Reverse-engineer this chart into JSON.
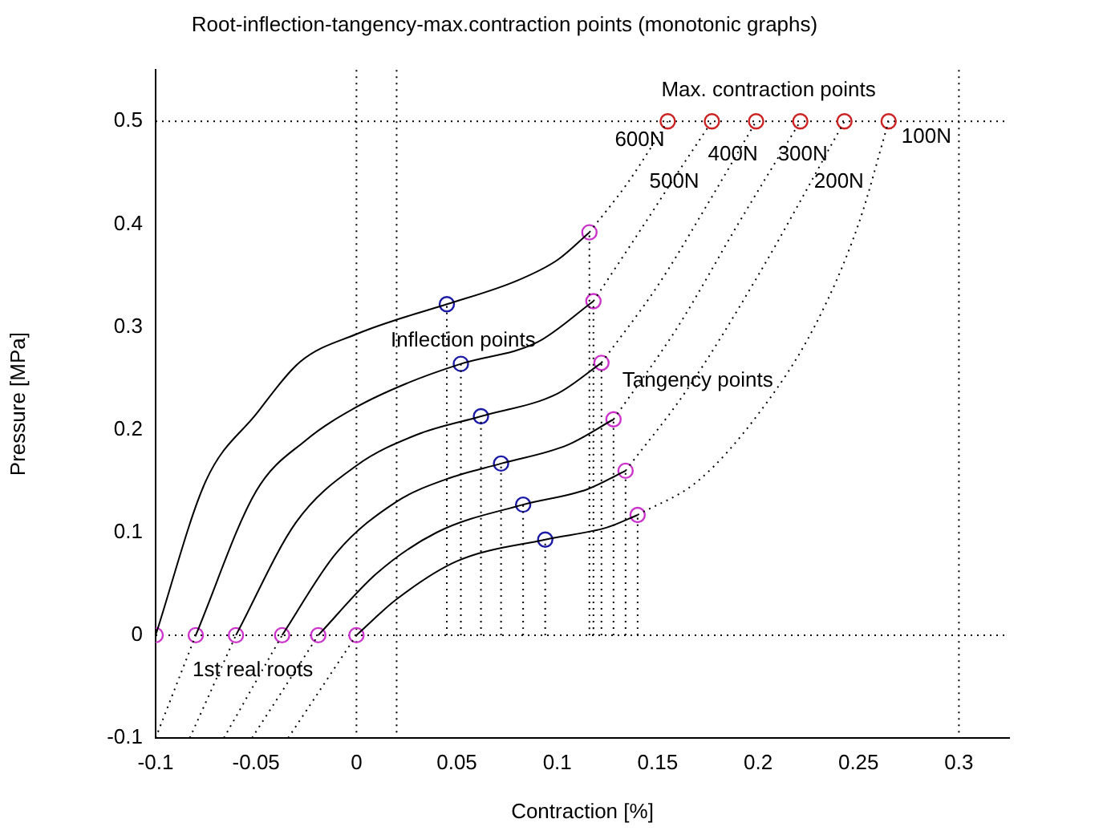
{
  "chart_data": {
    "type": "line",
    "title": "Root-inflection-tangency-max.contraction points (monotonic graphs)",
    "xlabel": "Contraction [%]",
    "ylabel": "Pressure [MPa]",
    "xlim": [
      -0.1,
      0.325
    ],
    "xticks": [
      -0.1,
      -0.05,
      0,
      0.05,
      0.1,
      0.15,
      0.2,
      0.25,
      0.3
    ],
    "ylim": [
      -0.1,
      0.55
    ],
    "yticks": [
      -0.1,
      0,
      0.1,
      0.2,
      0.3,
      0.4,
      0.5
    ],
    "grid": false,
    "legend": false,
    "ref_lines": [
      {
        "axis": "y",
        "value": 0,
        "line_style": "dotted"
      },
      {
        "axis": "y",
        "value": 0.5,
        "line_style": "dotted"
      },
      {
        "axis": "x",
        "value": 0,
        "line_style": "dotted"
      },
      {
        "axis": "x",
        "value": 0.02,
        "line_style": "dotted"
      },
      {
        "axis": "x",
        "value": 0.3,
        "line_style": "dotted"
      }
    ],
    "annotations": [
      {
        "text": "Max. contraction points",
        "x": 0.155,
        "y": 0.5
      },
      {
        "text": "Inflection points",
        "x": 0.045,
        "y": 0.322
      },
      {
        "text": "Tangency points",
        "x": 0.122,
        "y": 0.265
      },
      {
        "text": "1st real roots",
        "x": -0.08,
        "y": 0
      }
    ],
    "series": [
      {
        "type": "line",
        "color": "#000000",
        "line_style": "solid",
        "marker": "none",
        "x": [
          -0.1,
          -0.075,
          -0.05,
          -0.028,
          0,
          0.02,
          0.045,
          0.08,
          0.1,
          0.116
        ],
        "values": [
          0,
          0.15,
          0.215,
          0.266,
          0.293,
          0.307,
          0.322,
          0.345,
          0.365,
          0.392
        ]
      },
      {
        "type": "line",
        "name": "600N",
        "color": "#000000",
        "line_style": "dotted",
        "marker": "none",
        "x": [
          0.116,
          0.135,
          0.155
        ],
        "values": [
          0.392,
          0.44,
          0.5
        ]
      },
      {
        "type": "line",
        "color": "#000000",
        "line_style": "dotted",
        "marker": "none",
        "x": [
          -0.1,
          -0.08
        ],
        "values": [
          -0.1,
          0
        ]
      },
      {
        "type": "line",
        "color": "#000000",
        "line_style": "solid",
        "marker": "none",
        "x": [
          -0.08,
          -0.05,
          -0.025,
          0,
          0.025,
          0.052,
          0.09,
          0.118
        ],
        "values": [
          0,
          0.14,
          0.19,
          0.222,
          0.245,
          0.264,
          0.285,
          0.325
        ]
      },
      {
        "type": "line",
        "name": "500N",
        "color": "#000000",
        "line_style": "dotted",
        "marker": "none",
        "x": [
          0.118,
          0.14,
          0.16,
          0.177
        ],
        "values": [
          0.325,
          0.39,
          0.45,
          0.5
        ]
      },
      {
        "type": "line",
        "color": "#000000",
        "line_style": "dotted",
        "marker": "none",
        "x": [
          -0.083,
          -0.06
        ],
        "values": [
          -0.1,
          0
        ]
      },
      {
        "type": "line",
        "color": "#000000",
        "line_style": "solid",
        "marker": "none",
        "x": [
          -0.06,
          -0.03,
          0,
          0.03,
          0.062,
          0.1,
          0.122
        ],
        "values": [
          0,
          0.11,
          0.165,
          0.195,
          0.213,
          0.235,
          0.265
        ]
      },
      {
        "type": "line",
        "name": "400N",
        "color": "#000000",
        "line_style": "dotted",
        "marker": "none",
        "x": [
          0.122,
          0.15,
          0.175,
          0.199
        ],
        "values": [
          0.265,
          0.34,
          0.42,
          0.5
        ]
      },
      {
        "type": "line",
        "color": "#000000",
        "line_style": "dotted",
        "marker": "none",
        "x": [
          -0.066,
          -0.037
        ],
        "values": [
          -0.1,
          0
        ]
      },
      {
        "type": "line",
        "color": "#000000",
        "line_style": "solid",
        "marker": "none",
        "x": [
          -0.037,
          -0.01,
          0.02,
          0.045,
          0.072,
          0.105,
          0.128
        ],
        "values": [
          0,
          0.08,
          0.13,
          0.152,
          0.167,
          0.185,
          0.21
        ]
      },
      {
        "type": "line",
        "name": "300N",
        "color": "#000000",
        "line_style": "dotted",
        "marker": "none",
        "x": [
          0.128,
          0.16,
          0.19,
          0.221
        ],
        "values": [
          0.21,
          0.3,
          0.4,
          0.5
        ]
      },
      {
        "type": "line",
        "color": "#000000",
        "line_style": "dotted",
        "marker": "none",
        "x": [
          -0.052,
          -0.019
        ],
        "values": [
          -0.1,
          0
        ]
      },
      {
        "type": "line",
        "color": "#000000",
        "line_style": "solid",
        "marker": "none",
        "x": [
          -0.019,
          0.01,
          0.04,
          0.083,
          0.115,
          0.134
        ],
        "values": [
          0,
          0.06,
          0.1,
          0.127,
          0.142,
          0.16
        ]
      },
      {
        "type": "line",
        "name": "200N",
        "color": "#000000",
        "line_style": "dotted",
        "marker": "none",
        "x": [
          0.134,
          0.165,
          0.2,
          0.243
        ],
        "values": [
          0.16,
          0.24,
          0.35,
          0.5
        ]
      },
      {
        "type": "line",
        "color": "#000000",
        "line_style": "dotted",
        "marker": "none",
        "x": [
          -0.034,
          0
        ],
        "values": [
          -0.1,
          0
        ]
      },
      {
        "type": "line",
        "color": "#000000",
        "line_style": "solid",
        "marker": "none",
        "x": [
          0,
          0.02,
          0.05,
          0.094,
          0.125,
          0.14
        ],
        "values": [
          0,
          0.035,
          0.072,
          0.093,
          0.105,
          0.117
        ]
      },
      {
        "type": "line",
        "name": "100N",
        "color": "#000000",
        "line_style": "dotted",
        "marker": "none",
        "x": [
          0.14,
          0.17,
          0.2,
          0.228,
          0.25,
          0.265
        ],
        "values": [
          0.117,
          0.15,
          0.215,
          0.3,
          0.4,
          0.5
        ]
      },
      {
        "type": "line",
        "color": "#000000",
        "line_style": "dotted",
        "marker": "none",
        "x": [
          0.045,
          0.045
        ],
        "values": [
          0,
          0.322
        ]
      },
      {
        "type": "line",
        "color": "#000000",
        "line_style": "dotted",
        "marker": "none",
        "x": [
          0.052,
          0.052
        ],
        "values": [
          0,
          0.264
        ]
      },
      {
        "type": "line",
        "color": "#000000",
        "line_style": "dotted",
        "marker": "none",
        "x": [
          0.062,
          0.062
        ],
        "values": [
          0,
          0.213
        ]
      },
      {
        "type": "line",
        "color": "#000000",
        "line_style": "dotted",
        "marker": "none",
        "x": [
          0.072,
          0.072
        ],
        "values": [
          0,
          0.167
        ]
      },
      {
        "type": "line",
        "color": "#000000",
        "line_style": "dotted",
        "marker": "none",
        "x": [
          0.083,
          0.083
        ],
        "values": [
          0,
          0.127
        ]
      },
      {
        "type": "line",
        "color": "#000000",
        "line_style": "dotted",
        "marker": "none",
        "x": [
          0.094,
          0.094
        ],
        "values": [
          0,
          0.093
        ]
      },
      {
        "type": "line",
        "color": "#000000",
        "line_style": "dotted",
        "marker": "none",
        "x": [
          0.116,
          0.116
        ],
        "values": [
          0,
          0.392
        ]
      },
      {
        "type": "line",
        "color": "#000000",
        "line_style": "dotted",
        "marker": "none",
        "x": [
          0.118,
          0.118
        ],
        "values": [
          0,
          0.325
        ]
      },
      {
        "type": "line",
        "color": "#000000",
        "line_style": "dotted",
        "marker": "none",
        "x": [
          0.122,
          0.122
        ],
        "values": [
          0,
          0.265
        ]
      },
      {
        "type": "line",
        "color": "#000000",
        "line_style": "dotted",
        "marker": "none",
        "x": [
          0.128,
          0.128
        ],
        "values": [
          0,
          0.21
        ]
      },
      {
        "type": "line",
        "color": "#000000",
        "line_style": "dotted",
        "marker": "none",
        "x": [
          0.134,
          0.134
        ],
        "values": [
          0,
          0.16
        ]
      },
      {
        "type": "line",
        "color": "#000000",
        "line_style": "dotted",
        "marker": "none",
        "x": [
          0.14,
          0.14
        ],
        "values": [
          0,
          0.117
        ]
      },
      {
        "type": "scatter",
        "color": "#cc33cc",
        "marker": "circle",
        "x": [
          -0.1,
          -0.08,
          -0.06,
          -0.037,
          -0.019,
          0
        ],
        "values": [
          0,
          0,
          0,
          0,
          0,
          0
        ]
      },
      {
        "type": "scatter",
        "color": "#1a1aa6",
        "marker": "circle",
        "x": [
          0.045,
          0.052,
          0.062,
          0.072,
          0.083,
          0.094
        ],
        "values": [
          0.322,
          0.264,
          0.213,
          0.167,
          0.127,
          0.093
        ]
      },
      {
        "type": "scatter",
        "color": "#cc33cc",
        "marker": "circle",
        "x": [
          0.116,
          0.118,
          0.122,
          0.128,
          0.134,
          0.14
        ],
        "values": [
          0.392,
          0.325,
          0.265,
          0.21,
          0.16,
          0.117
        ]
      },
      {
        "type": "scatter",
        "color": "#cc2222",
        "marker": "circle",
        "x": [
          0.155,
          0.177,
          0.199,
          0.221,
          0.243,
          0.265
        ],
        "values": [
          0.5,
          0.5,
          0.5,
          0.5,
          0.5,
          0.5
        ]
      }
    ]
  }
}
